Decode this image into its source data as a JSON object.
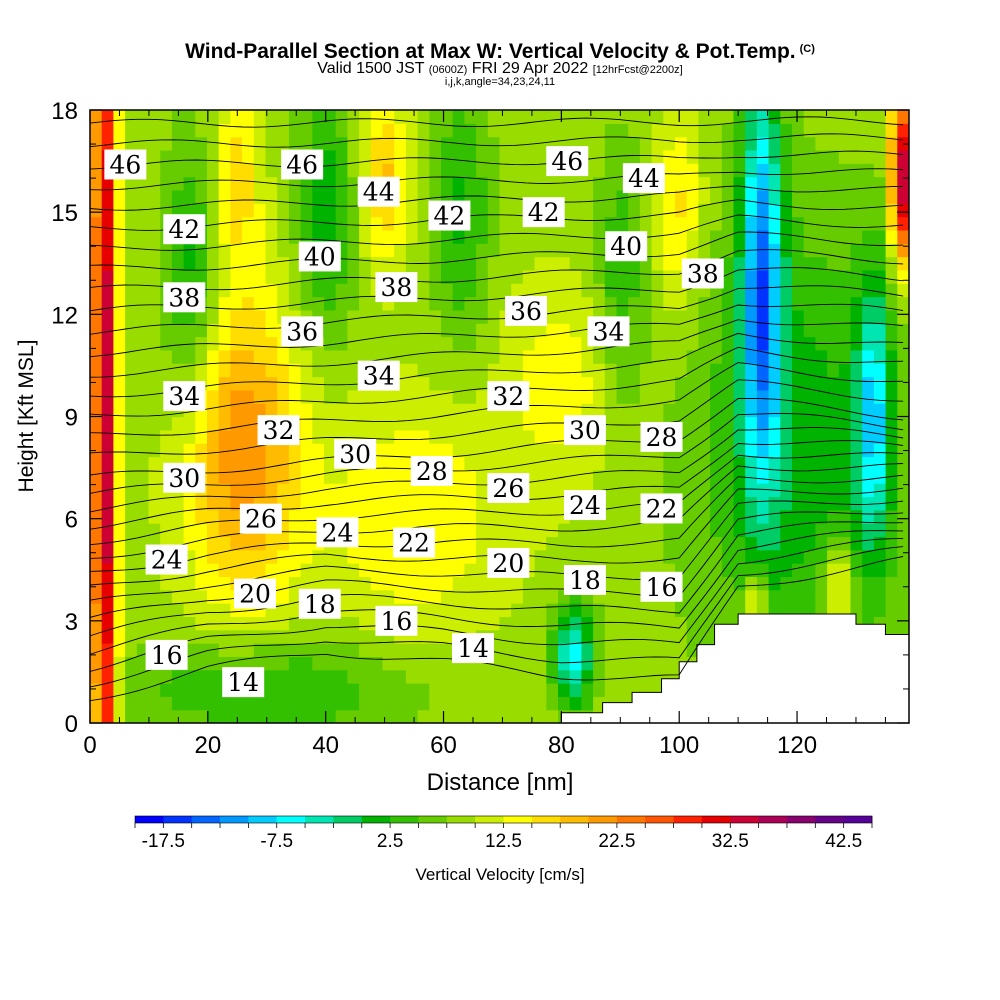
{
  "header": {
    "title": "Wind-Parallel Section at Max W: Vertical Velocity & Pot.Temp.",
    "copyright": "(C)",
    "valid_pre": "Valid 1500 JST",
    "valid_utc": "(0600Z)",
    "valid_date": "FRI 29 Apr 2022",
    "forecast": "[12hrFcst@2200z]",
    "grid_info": "i,j,k,angle=34,23,24,11"
  },
  "chart_data": {
    "type": "heatmap",
    "xlabel": "Distance [nm]",
    "ylabel": "Height [Kft MSL]",
    "xlim": [
      0,
      139
    ],
    "ylim": [
      0,
      18
    ],
    "x_ticks": [
      0,
      20,
      40,
      60,
      80,
      100,
      120
    ],
    "y_ticks": [
      0,
      3,
      6,
      9,
      12,
      15,
      18
    ],
    "colorbar": {
      "label": "Vertical Velocity [cm/s]",
      "tick_labels": [
        "-17.5",
        "-7.5",
        "2.5",
        "12.5",
        "22.5",
        "32.5",
        "42.5"
      ],
      "tick_values": [
        -17.5,
        -7.5,
        2.5,
        12.5,
        22.5,
        32.5,
        42.5
      ],
      "min": -20,
      "max": 45,
      "step": 2.5,
      "colors": [
        "#0000ff",
        "#0033ff",
        "#0066ff",
        "#0099ff",
        "#00ccff",
        "#00ffff",
        "#00e6b3",
        "#00cc66",
        "#00b300",
        "#33c000",
        "#66cc00",
        "#99dd00",
        "#ccee00",
        "#ffff00",
        "#ffdd00",
        "#ffbb00",
        "#ff9900",
        "#ff7700",
        "#ff5500",
        "#ff2200",
        "#e60000",
        "#cc0033",
        "#aa0055",
        "#88006e",
        "#660088",
        "#550099"
      ]
    },
    "terrain": [
      [
        80,
        0.3
      ],
      [
        87,
        0.6
      ],
      [
        92,
        0.9
      ],
      [
        97,
        1.3
      ],
      [
        100,
        1.8
      ],
      [
        103,
        2.3
      ],
      [
        106,
        2.9
      ],
      [
        110,
        3.2
      ],
      [
        128,
        3.2
      ],
      [
        130,
        2.9
      ],
      [
        135,
        2.9
      ],
      [
        135,
        2.6
      ],
      [
        139,
        2.6
      ]
    ],
    "w_background": 9,
    "w_field": [
      {
        "x": 2.5,
        "z": 9,
        "sx": 2.0,
        "sz": 20,
        "w": 26
      },
      {
        "x": 137.5,
        "z": 16,
        "sx": 1.5,
        "sz": 2.5,
        "w": 30
      },
      {
        "x": 26,
        "z": 8,
        "sx": 10,
        "sz": 4.5,
        "w": 13
      },
      {
        "x": 55,
        "z": 6,
        "sx": 15,
        "sz": 3.5,
        "w": 6
      },
      {
        "x": 25,
        "z": 16,
        "sx": 4,
        "sz": 3,
        "w": 7
      },
      {
        "x": 50,
        "z": 16,
        "sx": 4,
        "sz": 2.5,
        "w": 9
      },
      {
        "x": 100,
        "z": 15,
        "sx": 4,
        "sz": 3,
        "w": 7
      },
      {
        "x": 17,
        "z": 13,
        "sx": 5,
        "sz": 4,
        "w": -8
      },
      {
        "x": 40,
        "z": 15,
        "sx": 5,
        "sz": 4,
        "w": -8
      },
      {
        "x": 63,
        "z": 15,
        "sx": 5,
        "sz": 4,
        "w": -7
      },
      {
        "x": 90,
        "z": 13,
        "sx": 4,
        "sz": 4,
        "w": -6
      },
      {
        "x": 120,
        "z": 8,
        "sx": 18,
        "sz": 7,
        "w": -8
      },
      {
        "x": 114,
        "z": 13,
        "sx": 3.5,
        "sz": 6,
        "w": -20
      },
      {
        "x": 133,
        "z": 9,
        "sx": 3,
        "sz": 4,
        "w": -14
      },
      {
        "x": 82,
        "z": 2,
        "sx": 3.5,
        "sz": 1.5,
        "w": -16
      },
      {
        "x": 30,
        "z": 1,
        "sx": 25,
        "sz": 1.5,
        "w": -7
      },
      {
        "x": 80,
        "z": 10,
        "sx": 10,
        "sz": 3,
        "w": 5
      },
      {
        "x": 127,
        "z": 4,
        "sx": 2.5,
        "sz": 1.2,
        "w": 10
      },
      {
        "x": 113,
        "z": 3.5,
        "sx": 2,
        "sz": 1.0,
        "w": 9
      }
    ],
    "theta_lines": {
      "min": 14,
      "max": 46,
      "base": [
        [
          0,
          0.7
        ],
        [
          20,
          1.6
        ],
        [
          40,
          2.1
        ],
        [
          60,
          1.8
        ],
        [
          80,
          1.4
        ],
        [
          100,
          1.3
        ],
        [
          110,
          4.0
        ],
        [
          139,
          4.8
        ]
      ],
      "grad_low": [
        [
          0,
          0.55
        ],
        [
          40,
          0.5
        ],
        [
          80,
          0.45
        ],
        [
          110,
          0.35
        ],
        [
          139,
          0.4
        ]
      ],
      "grad_mid": [
        [
          0,
          0.14
        ],
        [
          100,
          0.12
        ],
        [
          110,
          0.12
        ],
        [
          139,
          0.2
        ]
      ],
      "switch_theta": 28,
      "switch_height": [
        [
          0,
          7.2
        ],
        [
          100,
          8.4
        ],
        [
          110,
          9.5
        ],
        [
          139,
          9.0
        ]
      ]
    },
    "contour_labels": [
      {
        "text": "46",
        "x": 6,
        "z": 16.4
      },
      {
        "text": "46",
        "x": 36,
        "z": 16.4
      },
      {
        "text": "46",
        "x": 81,
        "z": 16.5
      },
      {
        "text": "44",
        "x": 49,
        "z": 15.6
      },
      {
        "text": "44",
        "x": 94,
        "z": 16.0
      },
      {
        "text": "42",
        "x": 16,
        "z": 14.5
      },
      {
        "text": "42",
        "x": 61,
        "z": 14.9
      },
      {
        "text": "42",
        "x": 77,
        "z": 15.0
      },
      {
        "text": "40",
        "x": 39,
        "z": 13.7
      },
      {
        "text": "40",
        "x": 91,
        "z": 14.0
      },
      {
        "text": "38",
        "x": 16,
        "z": 12.5
      },
      {
        "text": "38",
        "x": 52,
        "z": 12.8
      },
      {
        "text": "38",
        "x": 104,
        "z": 13.2
      },
      {
        "text": "36",
        "x": 36,
        "z": 11.5
      },
      {
        "text": "36",
        "x": 74,
        "z": 12.1
      },
      {
        "text": "34",
        "x": 16,
        "z": 9.6
      },
      {
        "text": "34",
        "x": 49,
        "z": 10.2
      },
      {
        "text": "34",
        "x": 88,
        "z": 11.5
      },
      {
        "text": "32",
        "x": 32,
        "z": 8.6
      },
      {
        "text": "32",
        "x": 71,
        "z": 9.6
      },
      {
        "text": "30",
        "x": 16,
        "z": 7.2
      },
      {
        "text": "30",
        "x": 45,
        "z": 7.9
      },
      {
        "text": "30",
        "x": 84,
        "z": 8.6
      },
      {
        "text": "28",
        "x": 58,
        "z": 7.4
      },
      {
        "text": "28",
        "x": 97,
        "z": 8.4
      },
      {
        "text": "26",
        "x": 29,
        "z": 6.0
      },
      {
        "text": "26",
        "x": 71,
        "z": 6.9
      },
      {
        "text": "24",
        "x": 13,
        "z": 4.8
      },
      {
        "text": "24",
        "x": 42,
        "z": 5.6
      },
      {
        "text": "24",
        "x": 84,
        "z": 6.4
      },
      {
        "text": "22",
        "x": 55,
        "z": 5.3
      },
      {
        "text": "22",
        "x": 97,
        "z": 6.3
      },
      {
        "text": "20",
        "x": 28,
        "z": 3.8
      },
      {
        "text": "20",
        "x": 71,
        "z": 4.7
      },
      {
        "text": "18",
        "x": 39,
        "z": 3.5
      },
      {
        "text": "18",
        "x": 84,
        "z": 4.2
      },
      {
        "text": "16",
        "x": 13,
        "z": 2.0
      },
      {
        "text": "16",
        "x": 52,
        "z": 3.0
      },
      {
        "text": "16",
        "x": 97,
        "z": 4.0
      },
      {
        "text": "14",
        "x": 26,
        "z": 1.2
      },
      {
        "text": "14",
        "x": 65,
        "z": 2.2
      }
    ]
  }
}
